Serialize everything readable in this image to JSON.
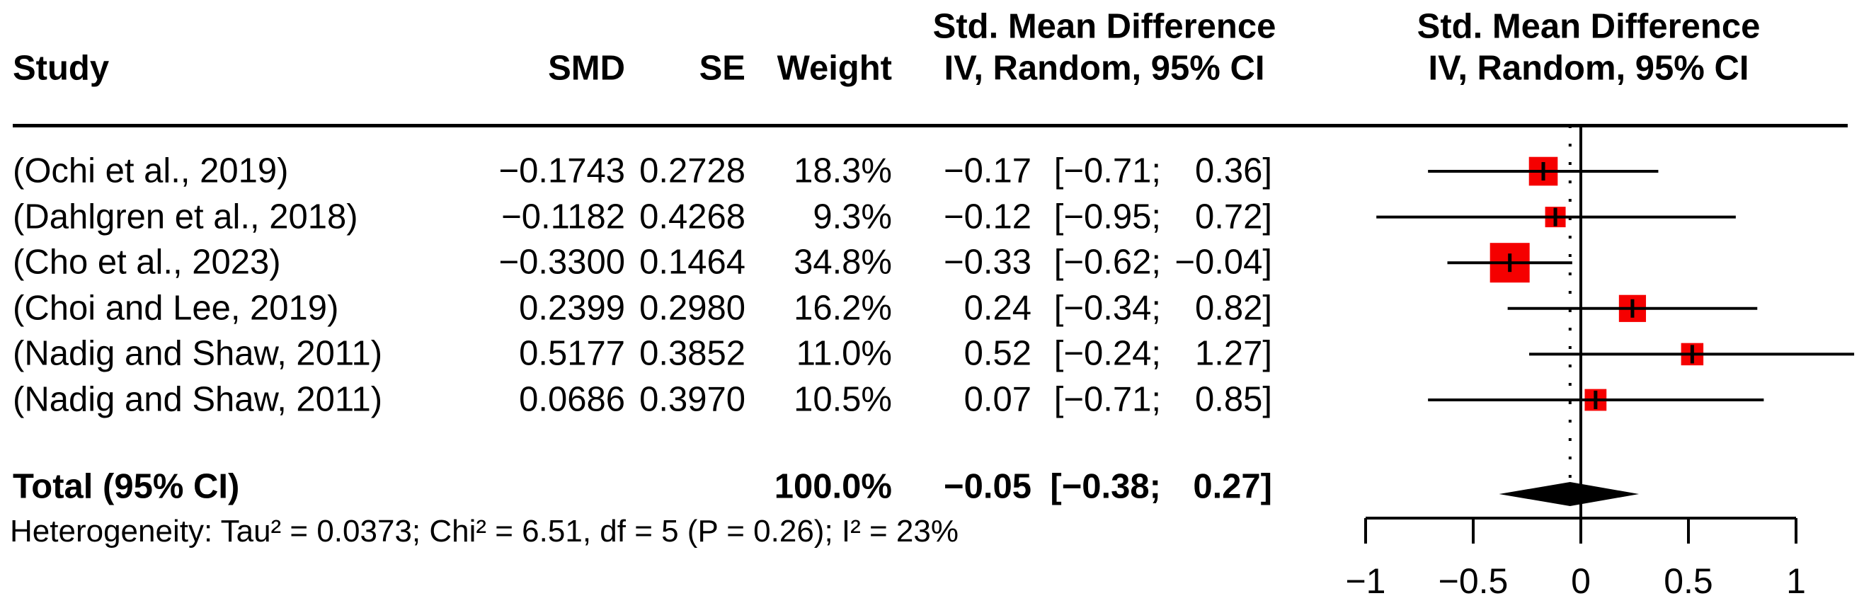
{
  "header": {
    "study": "Study",
    "smd": "SMD",
    "se": "SE",
    "weight": "Weight",
    "effect_line1": "Std. Mean Difference",
    "effect_line2": "IV, Random, 95% CI",
    "plot_line1": "Std. Mean Difference",
    "plot_line2": "IV, Random, 95% CI"
  },
  "colors": {
    "square": "#f50000",
    "diamond": "#000000",
    "line": "#000000",
    "text": "#000000",
    "background": "#ffffff"
  },
  "chart_data": {
    "type": "forest",
    "effect_measure": "Std. Mean Difference",
    "model": "IV, Random, 95% CI",
    "x_axis": {
      "range": [
        -1,
        1
      ],
      "ticks": [
        -1,
        -0.5,
        0,
        0.5,
        1
      ],
      "tick_labels": [
        "−1",
        "−0.5",
        "0",
        "0.5",
        "1"
      ],
      "reference_line": 0,
      "pooled_dotted_line": -0.05
    },
    "studies": [
      {
        "label": "(Ochi et al., 2019)",
        "smd": "−0.1743",
        "se": "0.2728",
        "weight": "18.3%",
        "weight_value": 18.3,
        "estimate": -0.1743,
        "ci_lower": -0.71,
        "ci_upper": 0.36,
        "ci_est": "−0.17",
        "ci_low": "[−0.71;",
        "ci_upp": "0.36]",
        "ci_text": "−0.17 [−0.71;  0.36]"
      },
      {
        "label": "(Dahlgren et al., 2018)",
        "smd": "−0.1182",
        "se": "0.4268",
        "weight": "9.3%",
        "weight_value": 9.3,
        "estimate": -0.1182,
        "ci_lower": -0.95,
        "ci_upper": 0.72,
        "ci_est": "−0.12",
        "ci_low": "[−0.95;",
        "ci_upp": "0.72]",
        "ci_text": "−0.12 [−0.95;  0.72]"
      },
      {
        "label": "(Cho et al., 2023)",
        "smd": "−0.3300",
        "se": "0.1464",
        "weight": "34.8%",
        "weight_value": 34.8,
        "estimate": -0.33,
        "ci_lower": -0.62,
        "ci_upper": -0.04,
        "ci_est": "−0.33",
        "ci_low": "[−0.62;",
        "ci_upp": "−0.04]",
        "ci_text": "−0.33 [−0.62; −0.04]"
      },
      {
        "label": "(Choi and Lee, 2019)",
        "smd": "0.2399",
        "se": "0.2980",
        "weight": "16.2%",
        "weight_value": 16.2,
        "estimate": 0.2399,
        "ci_lower": -0.34,
        "ci_upper": 0.82,
        "ci_est": "0.24",
        "ci_low": "[−0.34;",
        "ci_upp": "0.82]",
        "ci_text": "0.24 [−0.34;  0.82]"
      },
      {
        "label": "(Nadig and Shaw, 2011)",
        "smd": "0.5177",
        "se": "0.3852",
        "weight": "11.0%",
        "weight_value": 11.0,
        "estimate": 0.5177,
        "ci_lower": -0.24,
        "ci_upper": 1.27,
        "ci_est": "0.52",
        "ci_low": "[−0.24;",
        "ci_upp": "1.27]",
        "ci_text": "0.52 [−0.24;  1.27]"
      },
      {
        "label": "(Nadig and Shaw, 2011)",
        "smd": "0.0686",
        "se": "0.3970",
        "weight": "10.5%",
        "weight_value": 10.5,
        "estimate": 0.0686,
        "ci_lower": -0.71,
        "ci_upper": 0.85,
        "ci_est": "0.07",
        "ci_low": "[−0.71;",
        "ci_upp": "0.85]",
        "ci_text": "0.07 [−0.71;  0.85]"
      }
    ],
    "total": {
      "label": "Total (95% CI)",
      "weight": "100.0%",
      "estimate": -0.05,
      "ci_lower": -0.38,
      "ci_upper": 0.27,
      "ci_est": "−0.05",
      "ci_low": "[−0.38;",
      "ci_upp": "0.27]",
      "ci_text": "−0.05 [−0.38;  0.27]"
    },
    "heterogeneity": "Heterogeneity: Tau² = 0.0373; Chi² = 6.51, df = 5 (P = 0.26); I² = 23%"
  }
}
